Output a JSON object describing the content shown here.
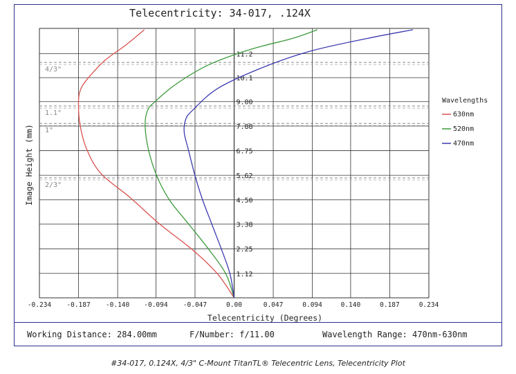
{
  "chart_data": {
    "type": "line",
    "title": "Telecentricity: 34-017, .124X",
    "xlabel": "Telecentricity (Degrees)",
    "ylabel": "Image Height (mm)",
    "xlim": [
      -0.234,
      0.234
    ],
    "ylim": [
      0,
      12.36
    ],
    "x_ticks": [
      "-0.234",
      "-0.187",
      "-0.140",
      "-0.094",
      "-0.047",
      "0.00",
      "0.047",
      "0.094",
      "0.140",
      "0.187",
      "0.234"
    ],
    "x_tick_values": [
      -0.234,
      -0.187,
      -0.14,
      -0.094,
      -0.047,
      0.0,
      0.047,
      0.094,
      0.14,
      0.187,
      0.234
    ],
    "y_ticks": [
      "1.12",
      "2.25",
      "3.38",
      "4.50",
      "5.62",
      "6.75",
      "7.88",
      "9.00",
      "10.1",
      "11.2"
    ],
    "y_tick_values": [
      1.12,
      2.25,
      3.38,
      4.5,
      5.62,
      6.75,
      7.88,
      9.0,
      10.1,
      11.2
    ],
    "grid": true,
    "sensor_formats": [
      {
        "label": "4/3\"",
        "y": 10.8
      },
      {
        "label": "1.1\"",
        "y": 8.8
      },
      {
        "label": "1\"",
        "y": 8.0
      },
      {
        "label": "2/3\"",
        "y": 5.5
      }
    ],
    "legend": {
      "title": "Wavelengths",
      "position": "right"
    },
    "series": [
      {
        "name": "630nm",
        "color": "#d9534f",
        "x": [
          0.0,
          -0.02,
          -0.05,
          -0.09,
          -0.125,
          -0.16,
          -0.177,
          -0.185,
          -0.187,
          -0.184,
          -0.175,
          -0.155,
          -0.13,
          -0.108
        ],
        "y": [
          0.0,
          1.1,
          2.2,
          3.4,
          4.6,
          5.7,
          6.8,
          7.9,
          9.0,
          9.6,
          10.1,
          10.9,
          11.6,
          12.3
        ]
      },
      {
        "name": "520nm",
        "color": "#3c9a3c",
        "x": [
          0.0,
          -0.01,
          -0.03,
          -0.055,
          -0.078,
          -0.093,
          -0.103,
          -0.107,
          -0.104,
          -0.095,
          -0.07,
          -0.03,
          0.02,
          0.07,
          0.1
        ],
        "y": [
          0.0,
          1.1,
          2.2,
          3.4,
          4.5,
          5.6,
          6.8,
          7.9,
          8.6,
          9.0,
          9.8,
          10.7,
          11.4,
          11.9,
          12.3
        ]
      },
      {
        "name": "470nm",
        "color": "#3a3ab0",
        "x": [
          0.0,
          -0.005,
          -0.015,
          -0.027,
          -0.038,
          -0.047,
          -0.055,
          -0.06,
          -0.058,
          -0.05,
          -0.02,
          0.03,
          0.09,
          0.16,
          0.215
        ],
        "y": [
          0.0,
          1.1,
          2.2,
          3.4,
          4.5,
          5.6,
          6.8,
          7.6,
          8.2,
          8.6,
          9.6,
          10.5,
          11.3,
          11.9,
          12.3
        ]
      }
    ]
  },
  "footer": {
    "working_distance": "Working Distance: 284.00mm",
    "f_number": "F/Number: f/11.00",
    "wavelength_range": "Wavelength Range: 470nm-630nm"
  },
  "caption": "#34-017, 0.124X, 4/3\" C-Mount TitanTL® Telecentric Lens, Telecentricity Plot"
}
